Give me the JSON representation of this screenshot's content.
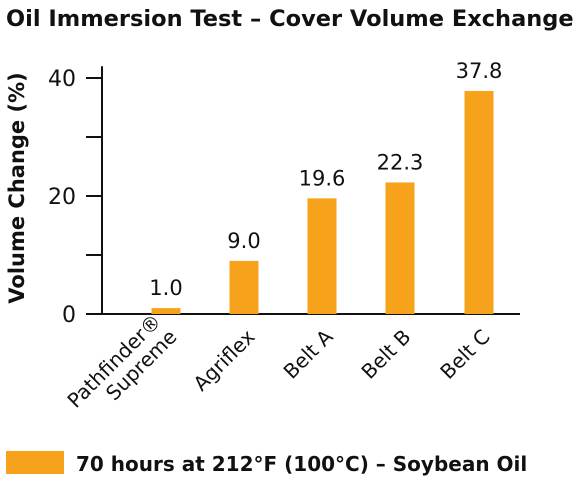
{
  "chart_data": {
    "type": "bar",
    "title": "Oil Immersion Test – Cover Volume Exchange",
    "ylabel": "Volume Change (%)",
    "xlabel": "",
    "categories": [
      {
        "lines": [
          "Pathfinder®",
          "Supreme"
        ]
      },
      {
        "lines": [
          "Agriflex"
        ]
      },
      {
        "lines": [
          "Belt A"
        ]
      },
      {
        "lines": [
          "Belt B"
        ]
      },
      {
        "lines": [
          "Belt C"
        ]
      }
    ],
    "series": [
      {
        "name": "70 hours at 212°F (100°C) – Soybean Oil",
        "color": "#F7A21B",
        "values": [
          1.0,
          9.0,
          19.6,
          22.3,
          37.8
        ],
        "value_labels": [
          "1.0",
          "9.0",
          "19.6",
          "22.3",
          "37.8"
        ]
      }
    ],
    "ylim": [
      0,
      42
    ],
    "yticks": [
      0,
      20,
      40
    ],
    "ytick_labels": [
      "0",
      "20",
      "40"
    ],
    "grid": false,
    "legend_position": "bottom-left"
  }
}
